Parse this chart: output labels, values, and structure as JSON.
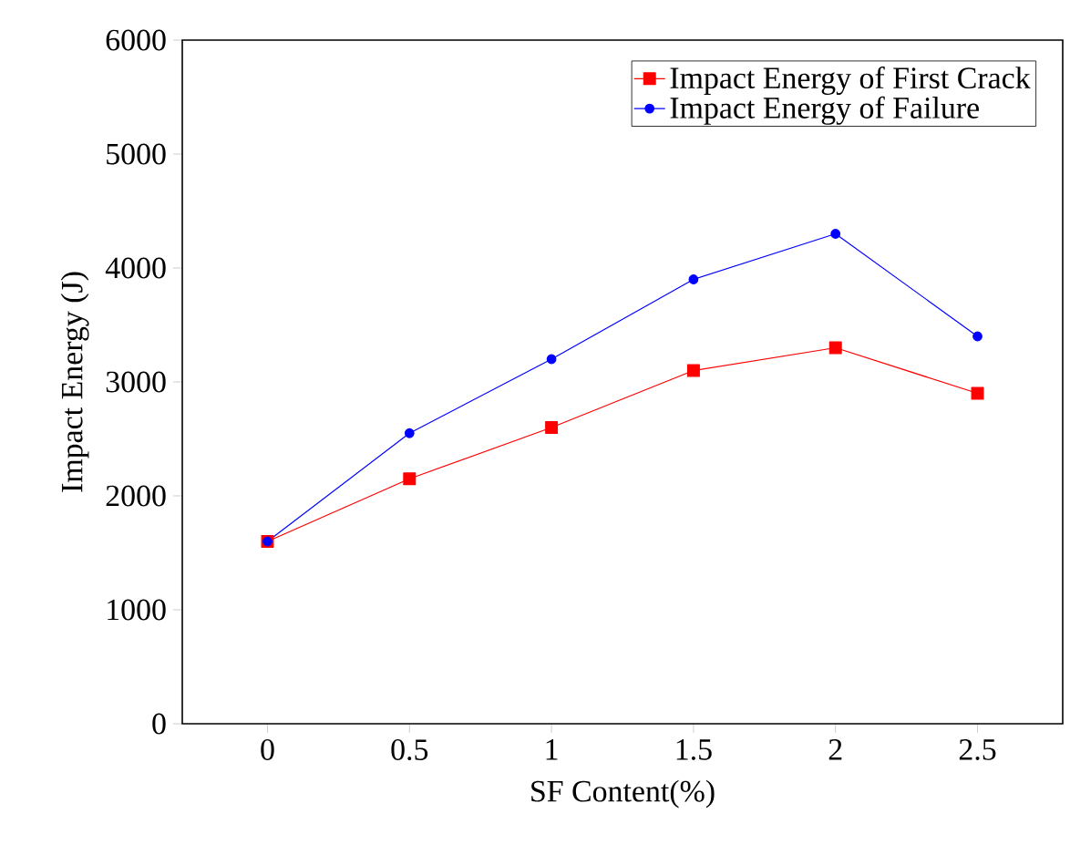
{
  "chart_data": {
    "type": "line",
    "xlabel": "SF Content(%)",
    "ylabel": "Impact Energy (J)",
    "x": [
      0,
      0.5,
      1,
      1.5,
      2,
      2.5
    ],
    "series": [
      {
        "name": "Impact Energy of First Crack",
        "color": "#ff0000",
        "marker": "square",
        "values": [
          1600,
          2150,
          2600,
          3100,
          3300,
          2900
        ]
      },
      {
        "name": "Impact Energy of Failure",
        "color": "#0000ff",
        "marker": "circle",
        "values": [
          1600,
          2550,
          3200,
          3900,
          4300,
          3400
        ]
      }
    ],
    "xlim": [
      -0.3,
      2.8
    ],
    "xticks": [
      0,
      0.5,
      1,
      1.5,
      2,
      2.5
    ],
    "ylim": [
      0,
      6000
    ],
    "yticks": [
      0,
      1000,
      2000,
      3000,
      4000,
      5000,
      6000
    ],
    "grid": false,
    "legend": "top right",
    "line_style": "solid"
  }
}
